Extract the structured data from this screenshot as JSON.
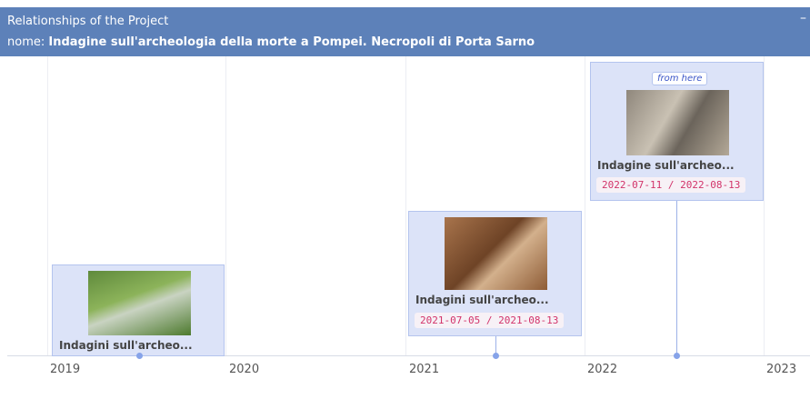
{
  "header": {
    "title": "Relationships of the Project",
    "label": "nome:",
    "name": "Indagine sull'archeologia della morte a Pompei. Necropoli di Porta Sarno",
    "close": "–"
  },
  "timeline": {
    "years": [
      "2019",
      "2020",
      "2021",
      "2022",
      "2023"
    ],
    "items": [
      {
        "title": "Indagini sull'archeo..."
      },
      {
        "title": "Indagini sull'archeo...",
        "dates": "2021-07-05 / 2021-08-13"
      },
      {
        "badge": "from here",
        "title": "Indagine sull'archeo...",
        "dates": "2022-07-11 / 2022-08-13"
      }
    ]
  }
}
